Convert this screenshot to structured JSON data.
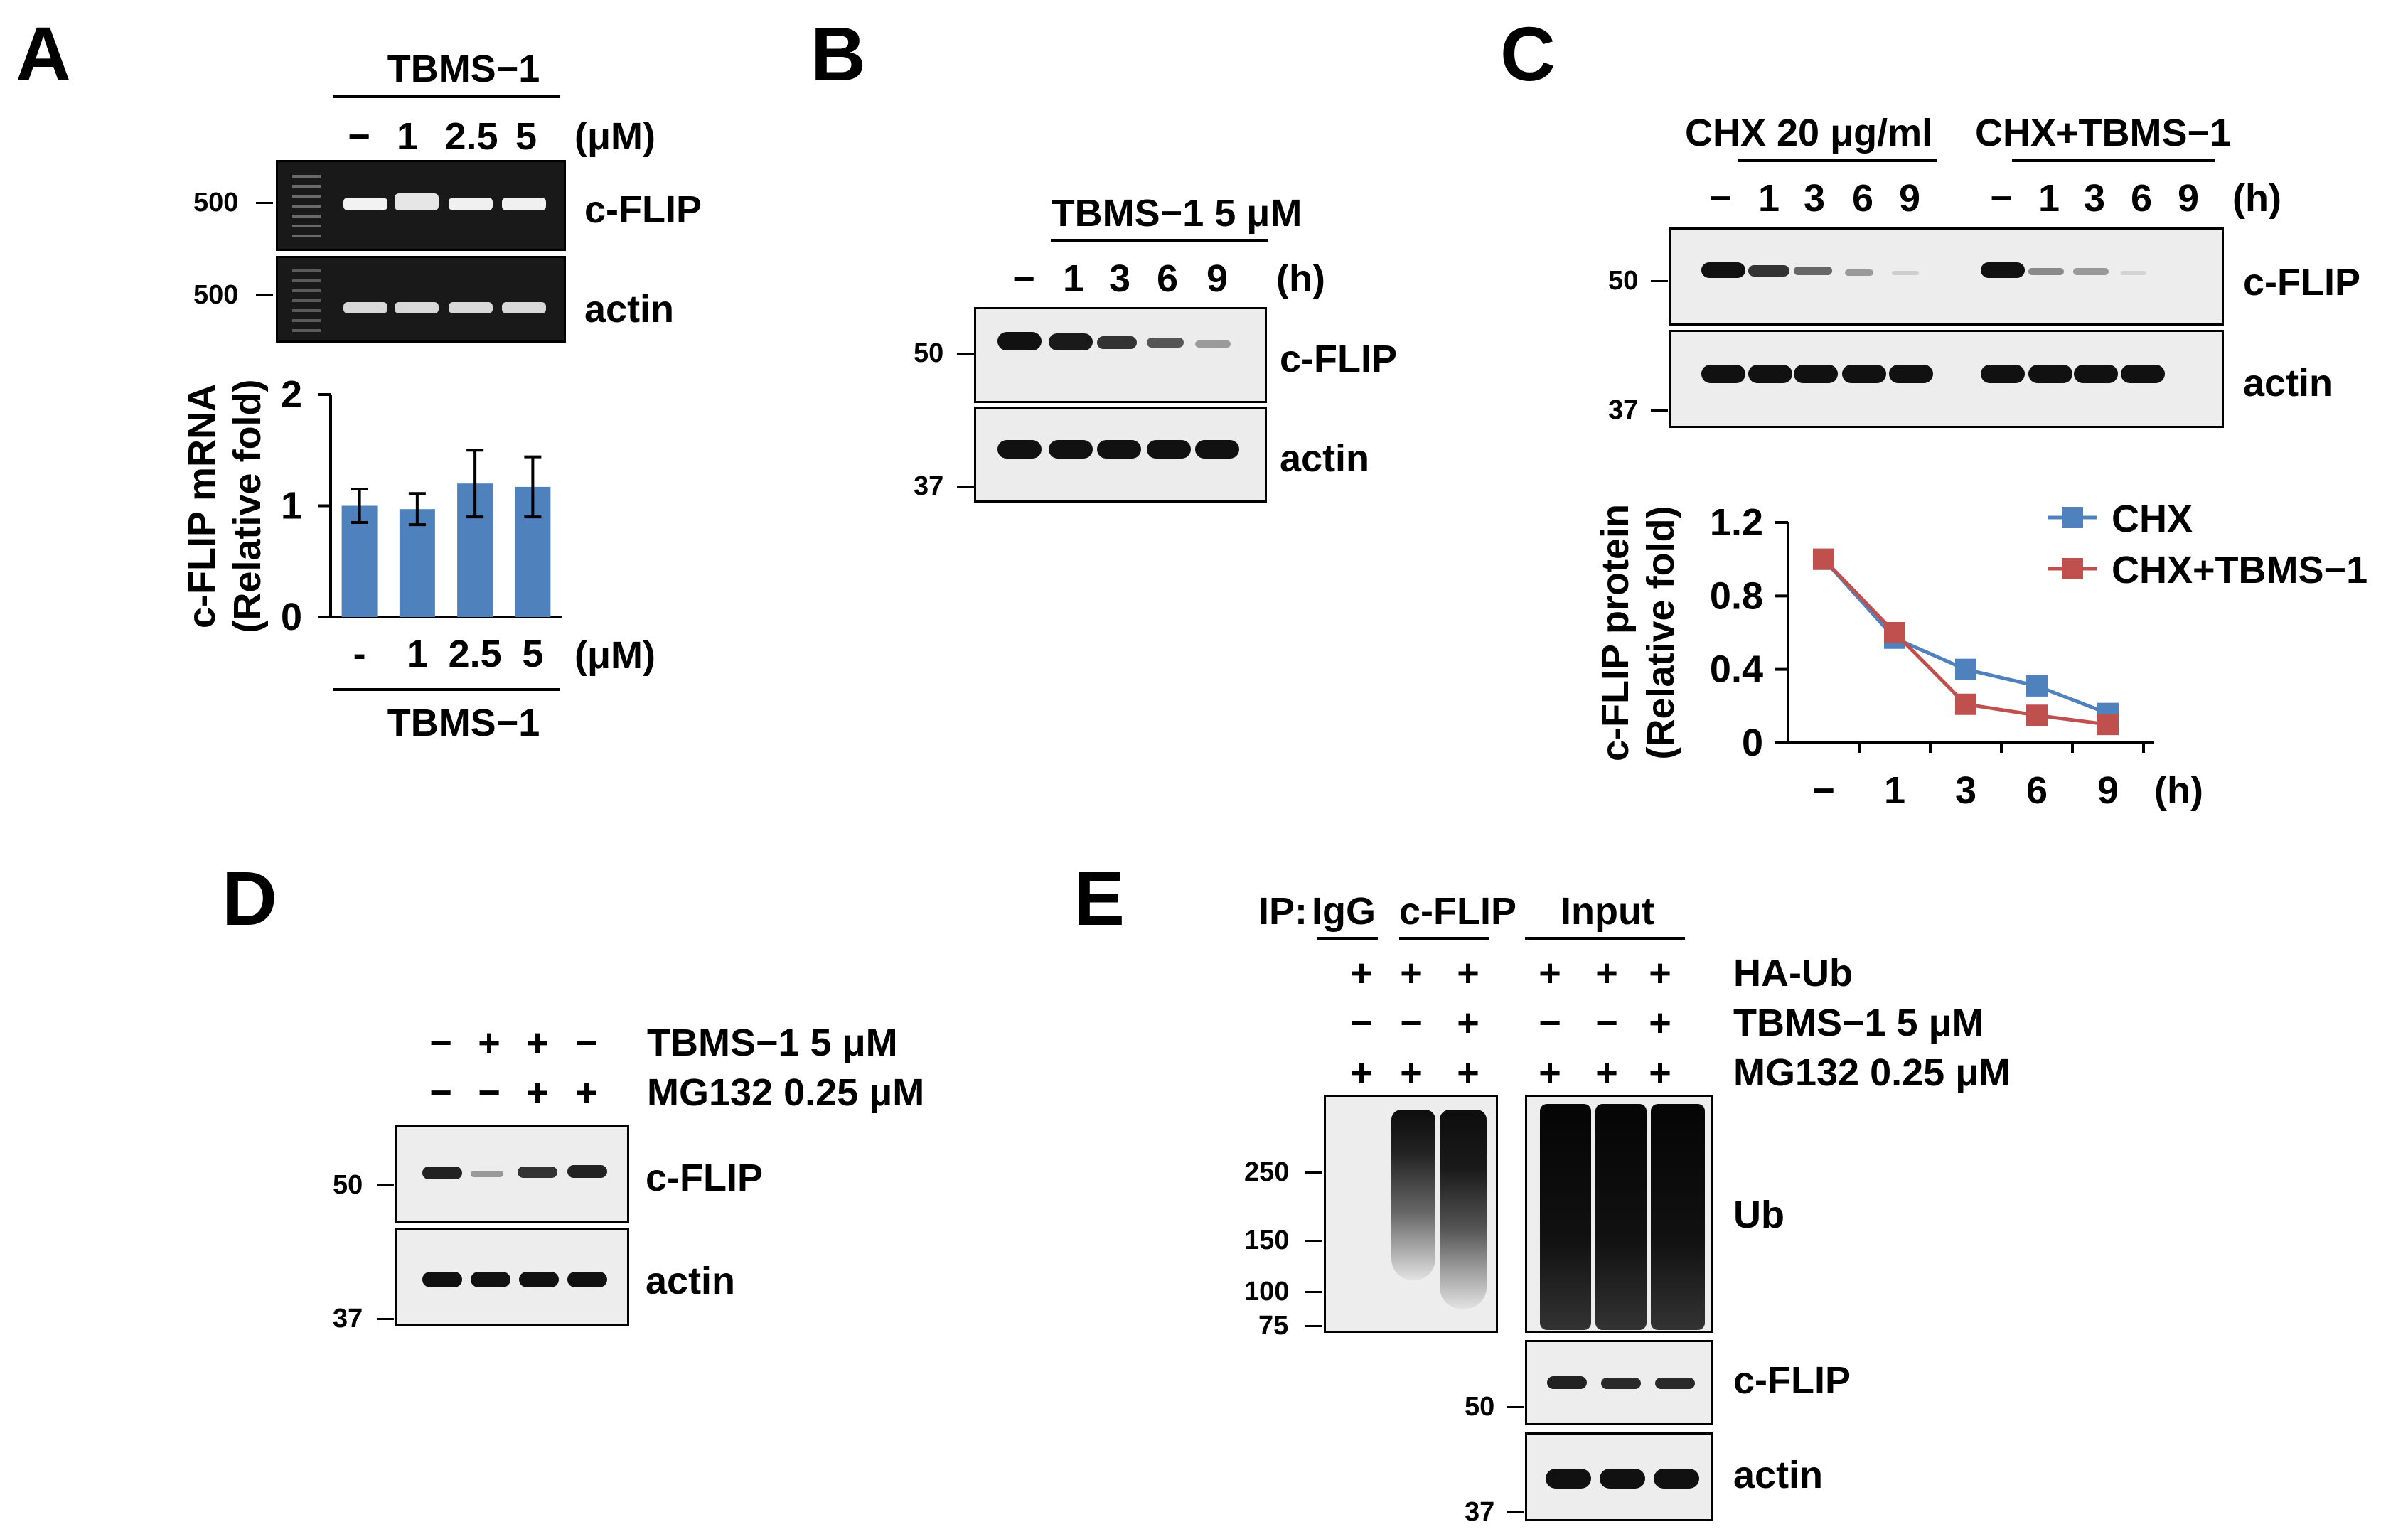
{
  "panels": [
    "A",
    "B",
    "C",
    "D",
    "E"
  ],
  "panelA": {
    "header": "TBMS−1",
    "lanes": [
      "−",
      "1",
      "2.5",
      "5"
    ],
    "unit": "(μM)",
    "gels": [
      {
        "name": "c-FLIP",
        "marker": "500"
      },
      {
        "name": "actin",
        "marker": "500"
      }
    ]
  },
  "panelB": {
    "header": "TBMS−1 5 μM",
    "lanes": [
      "−",
      "1",
      "3",
      "6",
      "9"
    ],
    "unit": "(h)",
    "blots": [
      {
        "name": "c-FLIP",
        "marker": "50"
      },
      {
        "name": "actin",
        "marker": "37"
      }
    ]
  },
  "panelC": {
    "header_left": "CHX 20 μg/ml",
    "header_right": "CHX+TBMS−1",
    "lanes": [
      "−",
      "1",
      "3",
      "6",
      "9",
      "−",
      "1",
      "3",
      "6",
      "9"
    ],
    "unit": "(h)",
    "blots": [
      {
        "name": "c-FLIP",
        "marker": "50"
      },
      {
        "name": "actin",
        "marker": "37"
      }
    ]
  },
  "panelD": {
    "rows": [
      {
        "label": "TBMS−1 5 μM",
        "signs": [
          "−",
          "+",
          "+",
          "−"
        ]
      },
      {
        "label": "MG132 0.25 μM",
        "signs": [
          "−",
          "−",
          "+",
          "+"
        ]
      }
    ],
    "blots": [
      {
        "name": "c-FLIP",
        "marker": "50"
      },
      {
        "name": "actin",
        "marker": "37"
      }
    ]
  },
  "panelE": {
    "ip_label": "IP:",
    "groups": [
      "IgG",
      "c-FLIP",
      "Input"
    ],
    "rows": [
      {
        "label": "HA-Ub",
        "signs": [
          "+",
          "+",
          "+",
          "+",
          "+",
          "+"
        ]
      },
      {
        "label": "TBMS−1 5 μM",
        "signs": [
          "−",
          "−",
          "+",
          "−",
          "−",
          "+"
        ]
      },
      {
        "label": "MG132 0.25 μM",
        "signs": [
          "+",
          "+",
          "+",
          "+",
          "+",
          "+"
        ]
      }
    ],
    "ub_label": "Ub",
    "ub_markers": [
      "250",
      "150",
      "100",
      "75"
    ],
    "blots": [
      {
        "name": "c-FLIP",
        "marker": "50"
      },
      {
        "name": "actin",
        "marker": "37"
      }
    ]
  },
  "chart_data": [
    {
      "type": "bar",
      "panel": "A",
      "categories": [
        "-",
        "1",
        "2.5",
        "5"
      ],
      "values": [
        1.0,
        0.97,
        1.2,
        1.17
      ],
      "errors": [
        0.15,
        0.14,
        0.3,
        0.27
      ],
      "ylabel": "c-FLIP mRNA",
      "ylabel2": "(Relative fold)",
      "xlabel": "TBMS−1",
      "xunit": "(μM)",
      "yticks": [
        "0",
        "1",
        "2"
      ],
      "ylim": [
        0,
        2
      ],
      "color": "#4f81bd"
    },
    {
      "type": "line",
      "panel": "C",
      "categories": [
        "−",
        "1",
        "3",
        "6",
        "9"
      ],
      "series": [
        {
          "name": "CHX",
          "values": [
            1.0,
            0.57,
            0.4,
            0.31,
            0.16
          ],
          "color": "#4f81bd"
        },
        {
          "name": "CHX+TBMS−1",
          "values": [
            1.0,
            0.6,
            0.21,
            0.15,
            0.1
          ],
          "color": "#c0504d"
        }
      ],
      "ylabel": "c-FLIP protein",
      "ylabel2": "(Relative fold)",
      "xunit": "(h)",
      "yticks": [
        "0",
        "0.4",
        "0.8",
        "1.2"
      ],
      "ylim": [
        0,
        1.2
      ],
      "legend": "top-right"
    }
  ]
}
